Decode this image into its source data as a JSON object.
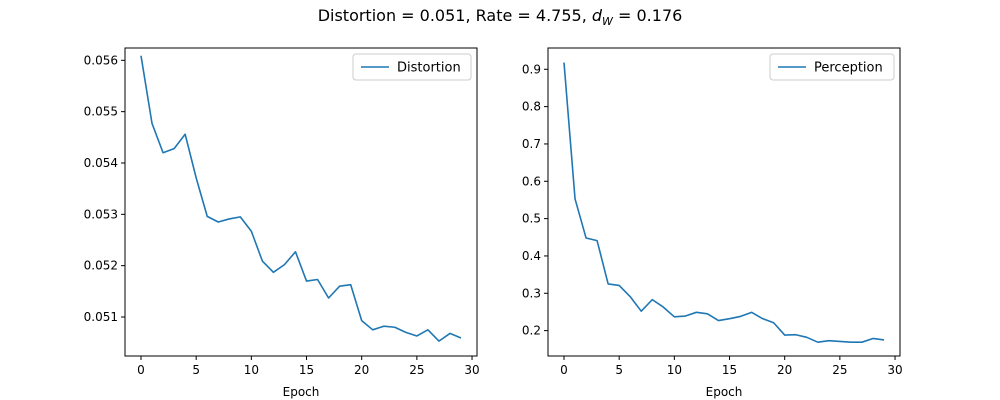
{
  "figure": {
    "title_prefix": "Distortion = 0.051, Rate = 4.755, ",
    "title_dw_main": "d",
    "title_dw_sub": "W",
    "title_suffix": " = 0.176"
  },
  "colors": {
    "line": "#1f77b4",
    "axis": "#000000",
    "background": "#ffffff"
  },
  "chart_data": [
    {
      "type": "line",
      "xlabel": "Epoch",
      "ylabel": "",
      "xlim": [
        -1.45,
        30.45
      ],
      "ylim": [
        0.05024,
        0.05624
      ],
      "x_ticks": [
        0,
        5,
        10,
        15,
        20,
        25,
        30
      ],
      "x_tick_labels": [
        "0",
        "5",
        "10",
        "15",
        "20",
        "25",
        "30"
      ],
      "y_ticks": [
        0.051,
        0.052,
        0.053,
        0.054,
        0.055,
        0.056
      ],
      "y_tick_labels": [
        "0.051",
        "0.052",
        "0.053",
        "0.054",
        "0.055",
        "0.056"
      ],
      "grid": false,
      "legend_position": "top-right",
      "series": [
        {
          "name": "Distortion",
          "x": [
            0,
            1,
            2,
            3,
            4,
            5,
            6,
            7,
            8,
            9,
            10,
            11,
            12,
            13,
            14,
            15,
            16,
            17,
            18,
            19,
            20,
            21,
            22,
            23,
            24,
            25,
            26,
            27,
            28,
            29
          ],
          "y": [
            0.05609,
            0.05477,
            0.0542,
            0.05428,
            0.05456,
            0.05371,
            0.05296,
            0.05285,
            0.05291,
            0.05295,
            0.05267,
            0.05209,
            0.05187,
            0.05202,
            0.05227,
            0.0517,
            0.05173,
            0.05137,
            0.0516,
            0.05163,
            0.05093,
            0.05075,
            0.05082,
            0.0508,
            0.0507,
            0.05063,
            0.05075,
            0.05053,
            0.05068,
            0.05059
          ]
        }
      ]
    },
    {
      "type": "line",
      "xlabel": "Epoch",
      "ylabel": "",
      "xlim": [
        -1.45,
        30.45
      ],
      "ylim": [
        0.132,
        0.957
      ],
      "x_ticks": [
        0,
        5,
        10,
        15,
        20,
        25,
        30
      ],
      "x_tick_labels": [
        "0",
        "5",
        "10",
        "15",
        "20",
        "25",
        "30"
      ],
      "y_ticks": [
        0.2,
        0.3,
        0.4,
        0.5,
        0.6,
        0.7,
        0.8,
        0.9
      ],
      "y_tick_labels": [
        "0.2",
        "0.3",
        "0.4",
        "0.5",
        "0.6",
        "0.7",
        "0.8",
        "0.9"
      ],
      "grid": false,
      "legend_position": "top-right",
      "series": [
        {
          "name": "Perception",
          "x": [
            0,
            1,
            2,
            3,
            4,
            5,
            6,
            7,
            8,
            9,
            10,
            11,
            12,
            13,
            14,
            15,
            16,
            17,
            18,
            19,
            20,
            21,
            22,
            23,
            24,
            25,
            26,
            27,
            28,
            29
          ],
          "y": [
            0.918,
            0.553,
            0.448,
            0.441,
            0.325,
            0.321,
            0.291,
            0.252,
            0.283,
            0.263,
            0.237,
            0.239,
            0.249,
            0.245,
            0.227,
            0.232,
            0.238,
            0.249,
            0.232,
            0.221,
            0.188,
            0.189,
            0.182,
            0.169,
            0.173,
            0.171,
            0.169,
            0.169,
            0.179,
            0.175
          ]
        }
      ]
    }
  ]
}
